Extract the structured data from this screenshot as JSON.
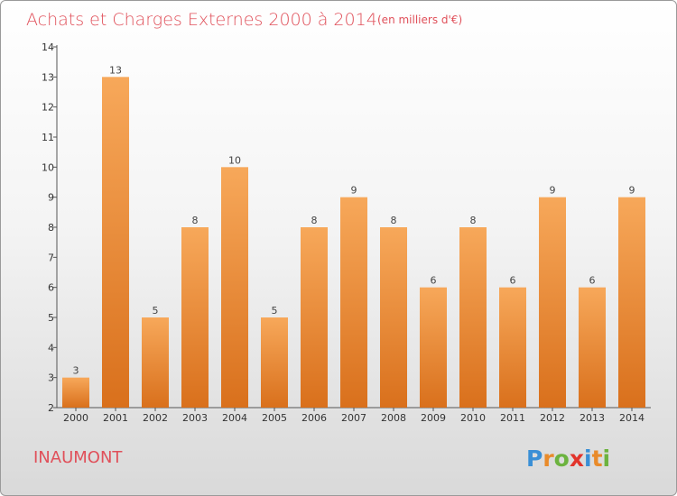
{
  "header": {
    "title": "Achats et Charges Externes 2000 à 2014",
    "subtitle": "(en milliers d'€)"
  },
  "footer": {
    "place": "INAUMONT",
    "brand_letters": [
      "P",
      "r",
      "o",
      "x",
      "i",
      "t",
      "i"
    ],
    "brand_colors": [
      "#3a8fd6",
      "#e98b2a",
      "#6cb33f",
      "#e2342b",
      "#3a8fd6",
      "#e98b2a",
      "#6cb33f"
    ]
  },
  "chart_data": {
    "type": "bar",
    "title": "Achats et Charges Externes 2000 à 2014",
    "subtitle": "(en milliers d'€)",
    "categories": [
      "2000",
      "2001",
      "2002",
      "2003",
      "2004",
      "2005",
      "2006",
      "2007",
      "2008",
      "2009",
      "2010",
      "2011",
      "2012",
      "2013",
      "2014"
    ],
    "values": [
      3,
      13,
      5,
      8,
      10,
      5,
      8,
      9,
      8,
      6,
      8,
      6,
      9,
      6,
      9
    ],
    "ylim": [
      2,
      14
    ],
    "yticks": [
      2,
      3,
      4,
      5,
      6,
      7,
      8,
      9,
      10,
      11,
      12,
      13,
      14
    ],
    "bar_color_top": "#f7a85a",
    "bar_color_bottom": "#d9701c",
    "grid": false,
    "legend": "none"
  }
}
